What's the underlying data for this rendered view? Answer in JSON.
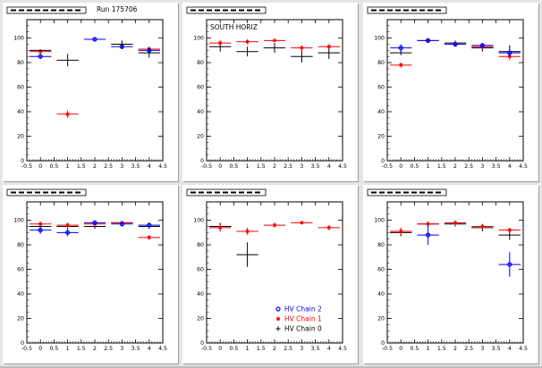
{
  "run_label": "Run 175706",
  "colors": {
    "hv0": "#000000",
    "hv1": "#ff0000",
    "hv2": "#0000ff"
  },
  "legend": [
    {
      "label": "HV Chain 2",
      "marker": "circle",
      "color": "#0000ff"
    },
    {
      "label": "HV Chain 1",
      "marker": "star",
      "color": "#ff0000"
    },
    {
      "label": "HV Chain 0",
      "marker": "cross",
      "color": "#000000"
    }
  ],
  "chart_data": [
    {
      "type": "scatter",
      "title": "",
      "annotation": "Run 175706",
      "xlim": [
        -0.5,
        4.5
      ],
      "ylim": [
        0,
        115
      ],
      "xticks": [
        "-0.5",
        "0",
        "0.5",
        "1",
        "1.5",
        "2",
        "2.5",
        "3",
        "3.5",
        "4",
        "4.5"
      ],
      "yticks": [
        "0",
        "20",
        "40",
        "60",
        "80",
        "100"
      ],
      "series": [
        {
          "key": "hv0",
          "points": [
            {
              "x": 1,
              "y": 82,
              "ey": 5
            }
          ]
        },
        {
          "key": "hv1",
          "points": [
            {
              "x": 0,
              "y": 89,
              "ey": 2
            },
            {
              "x": 1,
              "y": 38,
              "ey": 3
            },
            {
              "x": 4,
              "y": 91,
              "ey": 2
            }
          ]
        },
        {
          "key": "hv2",
          "points": [
            {
              "x": 0,
              "y": 85,
              "ey": 2
            },
            {
              "x": 2,
              "y": 99,
              "ey": 1
            },
            {
              "x": 3,
              "y": 93,
              "ey": 2
            },
            {
              "x": 4,
              "y": 90,
              "ey": 2
            }
          ]
        }
      ],
      "extra0": [
        {
          "x": 0,
          "y": 90
        },
        {
          "x": 3,
          "y": 95,
          "ey": 3
        },
        {
          "x": 4,
          "y": 88,
          "ey": 4
        }
      ]
    },
    {
      "type": "scatter",
      "title": "",
      "annotation": "SOUTH HORIZ",
      "xlim": [
        -0.5,
        4.5
      ],
      "ylim": [
        0,
        115
      ],
      "xticks": [
        "-0.5",
        "0",
        "0.5",
        "1",
        "1.5",
        "2",
        "2.5",
        "3",
        "3.5",
        "4",
        "4.5"
      ],
      "yticks": [
        "0",
        "20",
        "40",
        "60",
        "80",
        "100"
      ],
      "series": [
        {
          "key": "hv0",
          "points": [
            {
              "x": 0,
              "y": 93,
              "ey": 4
            },
            {
              "x": 1,
              "y": 89,
              "ey": 4
            },
            {
              "x": 2,
              "y": 92,
              "ey": 4
            },
            {
              "x": 3,
              "y": 85,
              "ey": 5
            },
            {
              "x": 4,
              "y": 88,
              "ey": 5
            }
          ]
        },
        {
          "key": "hv1",
          "points": [
            {
              "x": 0,
              "y": 96,
              "ey": 2
            },
            {
              "x": 1,
              "y": 97,
              "ey": 2
            },
            {
              "x": 2,
              "y": 98,
              "ey": 1
            },
            {
              "x": 3,
              "y": 92,
              "ey": 2
            },
            {
              "x": 4,
              "y": 93,
              "ey": 2
            }
          ]
        },
        {
          "key": "hv2",
          "points": []
        }
      ]
    },
    {
      "type": "scatter",
      "title": "",
      "annotation": "",
      "xlim": [
        -0.5,
        4.5
      ],
      "ylim": [
        0,
        115
      ],
      "xticks": [
        "-0.5",
        "0",
        "0.5",
        "1",
        "1.5",
        "2",
        "2.5",
        "3",
        "3.5",
        "4",
        "4.5"
      ],
      "yticks": [
        "0",
        "20",
        "40",
        "60",
        "80",
        "100"
      ],
      "series": [
        {
          "key": "hv0",
          "points": [
            {
              "x": 0,
              "y": 88,
              "ey": 2
            },
            {
              "x": 2,
              "y": 96,
              "ey": 2
            },
            {
              "x": 3,
              "y": 92,
              "ey": 3
            },
            {
              "x": 4,
              "y": 89,
              "ey": 5
            }
          ]
        },
        {
          "key": "hv1",
          "points": [
            {
              "x": 0,
              "y": 78,
              "ey": 2
            },
            {
              "x": 1,
              "y": 98,
              "ey": 1
            },
            {
              "x": 2,
              "y": 95,
              "ey": 2
            },
            {
              "x": 3,
              "y": 93,
              "ey": 2
            },
            {
              "x": 4,
              "y": 85,
              "ey": 3
            }
          ]
        },
        {
          "key": "hv2",
          "points": [
            {
              "x": 0,
              "y": 92,
              "ey": 3
            },
            {
              "x": 1,
              "y": 98,
              "ey": 1
            },
            {
              "x": 2,
              "y": 95,
              "ey": 2
            },
            {
              "x": 3,
              "y": 94,
              "ey": 2
            },
            {
              "x": 4,
              "y": 88,
              "ey": 3
            }
          ]
        }
      ]
    },
    {
      "type": "scatter",
      "title": "",
      "annotation": "",
      "xlim": [
        -0.5,
        4.5
      ],
      "ylim": [
        0,
        115
      ],
      "xticks": [
        "-0.5",
        "0",
        "0.5",
        "1",
        "1.5",
        "2",
        "2.5",
        "3",
        "3.5",
        "4",
        "4.5"
      ],
      "yticks": [
        "0",
        "20",
        "40",
        "60",
        "80",
        "100"
      ],
      "series": [
        {
          "key": "hv0",
          "points": [
            {
              "x": 0,
              "y": 95,
              "ey": 2
            },
            {
              "x": 1,
              "y": 95,
              "ey": 2
            },
            {
              "x": 2,
              "y": 95,
              "ey": 2
            },
            {
              "x": 3,
              "y": 98,
              "ey": 1
            },
            {
              "x": 4,
              "y": 95,
              "ey": 2
            }
          ]
        },
        {
          "key": "hv1",
          "points": [
            {
              "x": 0,
              "y": 97,
              "ey": 2
            },
            {
              "x": 1,
              "y": 96,
              "ey": 2
            },
            {
              "x": 2,
              "y": 97,
              "ey": 2
            },
            {
              "x": 3,
              "y": 98,
              "ey": 1
            },
            {
              "x": 4,
              "y": 86,
              "ey": 2
            }
          ]
        },
        {
          "key": "hv2",
          "points": [
            {
              "x": 0,
              "y": 92,
              "ey": 3
            },
            {
              "x": 1,
              "y": 90,
              "ey": 3
            },
            {
              "x": 2,
              "y": 98,
              "ey": 2
            },
            {
              "x": 3,
              "y": 97,
              "ey": 2
            },
            {
              "x": 4,
              "y": 96,
              "ey": 2
            }
          ]
        }
      ]
    },
    {
      "type": "scatter",
      "title": "",
      "annotation": "",
      "xlim": [
        -0.5,
        4.5
      ],
      "ylim": [
        0,
        115
      ],
      "xticks": [
        "-0.5",
        "0",
        "0.5",
        "1",
        "1.5",
        "2",
        "2.5",
        "3",
        "3.5",
        "4",
        "4.5"
      ],
      "yticks": [
        "0",
        "20",
        "40",
        "60",
        "80",
        "100"
      ],
      "series": [
        {
          "key": "hv0",
          "points": [
            {
              "x": 0,
              "y": 95,
              "ey": 3
            },
            {
              "x": 1,
              "y": 72,
              "ey": 10
            }
          ]
        },
        {
          "key": "hv1",
          "points": [
            {
              "x": 0,
              "y": 94,
              "ey": 3
            },
            {
              "x": 1,
              "y": 91,
              "ey": 3
            },
            {
              "x": 2,
              "y": 96,
              "ey": 2
            },
            {
              "x": 3,
              "y": 98,
              "ey": 1
            },
            {
              "x": 4,
              "y": 94,
              "ey": 2
            }
          ]
        },
        {
          "key": "hv2",
          "points": []
        }
      ],
      "show_legend": true
    },
    {
      "type": "scatter",
      "title": "",
      "annotation": "",
      "xlim": [
        -0.5,
        4.5
      ],
      "ylim": [
        0,
        115
      ],
      "xticks": [
        "-0.5",
        "0",
        "0.5",
        "1",
        "1.5",
        "2",
        "2.5",
        "3",
        "3.5",
        "4",
        "4.5"
      ],
      "yticks": [
        "0",
        "20",
        "40",
        "60",
        "80",
        "100"
      ],
      "series": [
        {
          "key": "hv0",
          "points": [
            {
              "x": 0,
              "y": 90,
              "ey": 3
            },
            {
              "x": 1,
              "y": 97,
              "ey": 2
            },
            {
              "x": 2,
              "y": 97,
              "ey": 2
            },
            {
              "x": 3,
              "y": 94,
              "ey": 3
            },
            {
              "x": 4,
              "y": 88,
              "ey": 4
            }
          ]
        },
        {
          "key": "hv1",
          "points": [
            {
              "x": 0,
              "y": 91,
              "ey": 3
            },
            {
              "x": 1,
              "y": 97,
              "ey": 2
            },
            {
              "x": 2,
              "y": 98,
              "ey": 2
            },
            {
              "x": 3,
              "y": 95,
              "ey": 2
            },
            {
              "x": 4,
              "y": 92,
              "ey": 2
            }
          ]
        },
        {
          "key": "hv2",
          "points": [
            {
              "x": 1,
              "y": 88,
              "ey": 8
            },
            {
              "x": 4,
              "y": 64,
              "ey": 10
            }
          ]
        }
      ]
    }
  ]
}
